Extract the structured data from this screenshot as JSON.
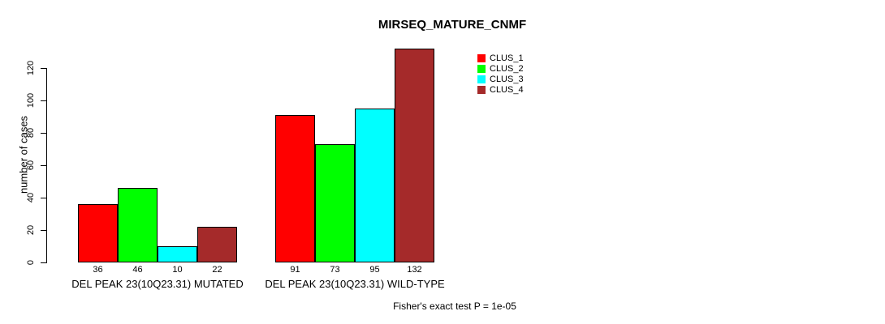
{
  "chart_data": {
    "type": "bar",
    "title": "MIRSEQ_MATURE_CNMF",
    "xlabel": "",
    "ylabel": "number of cases",
    "ylim": [
      0,
      132
    ],
    "yticks": [
      0,
      20,
      40,
      60,
      80,
      100,
      120
    ],
    "grid": false,
    "legend_position": "right-of-plot-top",
    "categories": [
      "DEL PEAK 23(10Q23.31) MUTATED",
      "DEL PEAK 23(10Q23.31) WILD-TYPE"
    ],
    "series": [
      {
        "name": "CLUS_1",
        "color": "#ff0000",
        "values": [
          36,
          91
        ]
      },
      {
        "name": "CLUS_2",
        "color": "#00ff00",
        "values": [
          46,
          73
        ]
      },
      {
        "name": "CLUS_3",
        "color": "#00ffff",
        "values": [
          10,
          95
        ]
      },
      {
        "name": "CLUS_4",
        "color": "#a52a2a",
        "values": [
          22,
          132
        ]
      }
    ],
    "bar_value_labels_shown": true,
    "footnote": "Fisher's exact test P = 1e-05"
  },
  "colors": {
    "background": "#ffffff",
    "axis": "#000000",
    "text": "#000000"
  }
}
